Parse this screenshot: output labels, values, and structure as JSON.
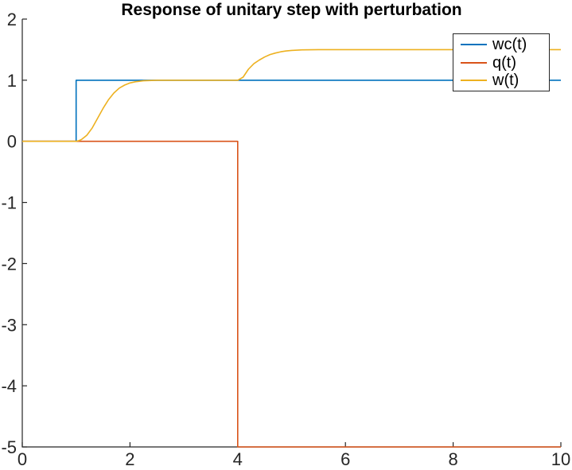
{
  "window": {
    "background": "#ffffff"
  },
  "styles": {
    "axis_color": "#262626",
    "tick_label_color": "#262626",
    "title_color": "#000000",
    "legend_border_color": "#262626",
    "legend_background": "#ffffff"
  },
  "chart_data": {
    "type": "line",
    "title": "Response of unitary step with perturbation",
    "xlabel": "",
    "ylabel": "",
    "xlim": [
      0,
      10
    ],
    "ylim": [
      -5,
      2
    ],
    "xticks": [
      0,
      2,
      4,
      6,
      8,
      10
    ],
    "yticks": [
      2,
      1,
      0,
      -1,
      -2,
      -3,
      -4,
      -5
    ],
    "grid": false,
    "box": false,
    "legend": {
      "position": "northeast",
      "border": true,
      "entries": [
        "wc(t)",
        "q(t)",
        "w(t)"
      ]
    },
    "series": [
      {
        "name": "wc(t)",
        "color": "#0072BD",
        "points": [
          [
            0,
            0
          ],
          [
            1,
            0
          ],
          [
            1,
            1
          ],
          [
            10,
            1
          ]
        ]
      },
      {
        "name": "q(t)",
        "color": "#D95319",
        "points": [
          [
            0,
            0
          ],
          [
            4,
            0
          ],
          [
            4,
            -5
          ],
          [
            10,
            -5
          ]
        ]
      },
      {
        "name": "w(t)",
        "color": "#EDB120",
        "points": [
          [
            0,
            0
          ],
          [
            1,
            0
          ],
          [
            1.05,
            0.01
          ],
          [
            1.1,
            0.03
          ],
          [
            1.2,
            0.1
          ],
          [
            1.3,
            0.22
          ],
          [
            1.4,
            0.38
          ],
          [
            1.5,
            0.54
          ],
          [
            1.6,
            0.68
          ],
          [
            1.7,
            0.79
          ],
          [
            1.8,
            0.87
          ],
          [
            1.9,
            0.92
          ],
          [
            2.0,
            0.955
          ],
          [
            2.1,
            0.975
          ],
          [
            2.25,
            0.99
          ],
          [
            2.5,
            1
          ],
          [
            4,
            1
          ],
          [
            4.1,
            1.05
          ],
          [
            4.2,
            1.18
          ],
          [
            4.3,
            1.27
          ],
          [
            4.4,
            1.33
          ],
          [
            4.5,
            1.38
          ],
          [
            4.6,
            1.42
          ],
          [
            4.7,
            1.445
          ],
          [
            4.8,
            1.465
          ],
          [
            4.9,
            1.478
          ],
          [
            5.0,
            1.487
          ],
          [
            5.2,
            1.496
          ],
          [
            5.5,
            1.5
          ],
          [
            10,
            1.5
          ]
        ]
      }
    ]
  }
}
